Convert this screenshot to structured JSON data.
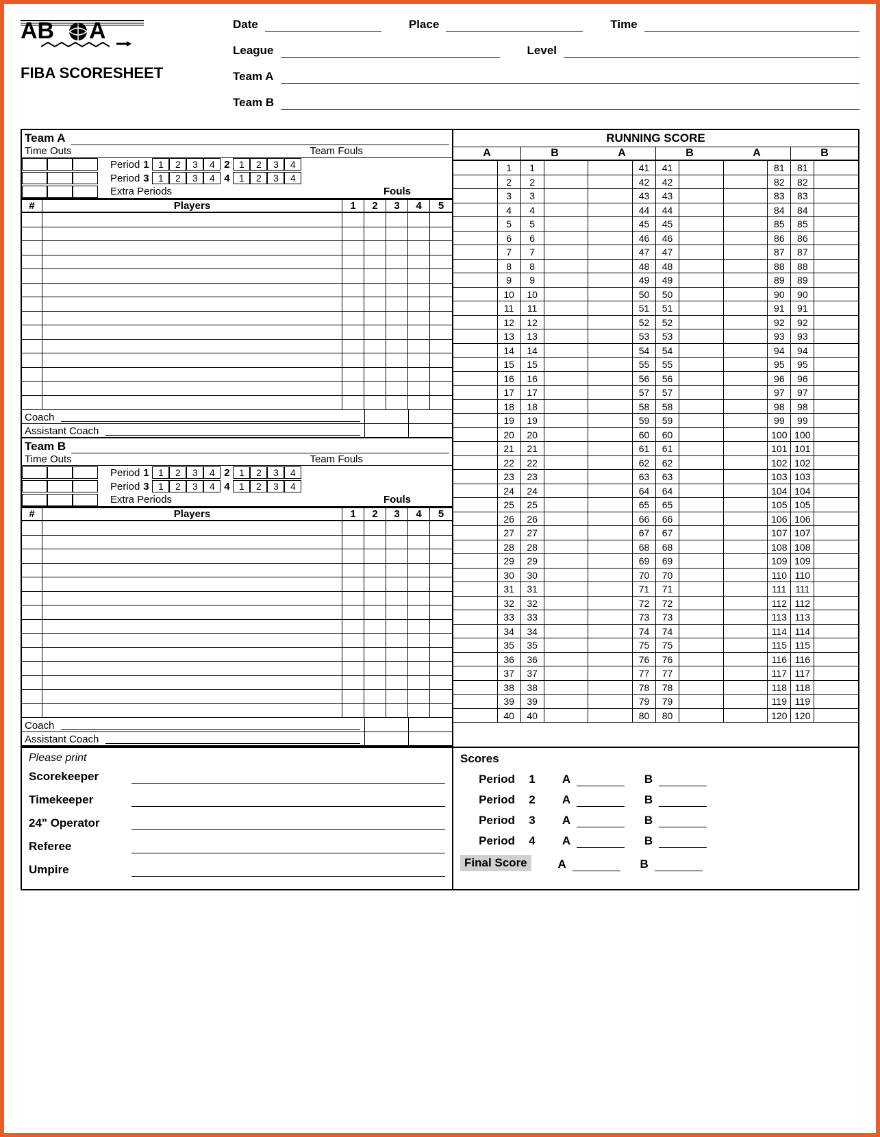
{
  "header": {
    "title": "FIBA SCORESHEET",
    "logo_text": "ABOA",
    "fields": {
      "date": "Date",
      "place": "Place",
      "time": "Time",
      "league": "League",
      "level": "Level",
      "teamA": "Team A",
      "teamB": "Team B"
    }
  },
  "team_section": {
    "teamA_label": "Team A",
    "teamB_label": "Team B",
    "timeouts": "Time Outs",
    "team_fouls": "Team Fouls",
    "period": "Period",
    "extra_periods": "Extra Periods",
    "fouls": "Fouls",
    "period_nums": [
      "1",
      "3"
    ],
    "period_right_nums": [
      "2",
      "4"
    ],
    "foul_cells": [
      "1",
      "2",
      "3",
      "4"
    ],
    "players_hdr_num": "#",
    "players_hdr_name": "Players",
    "players_hdr_fouls": [
      "1",
      "2",
      "3",
      "4",
      "5"
    ],
    "player_rows": 14,
    "coach": "Coach",
    "asst_coach": "Assistant Coach"
  },
  "running_score": {
    "title": "RUNNING SCORE",
    "col_labels": [
      "A",
      "B"
    ],
    "ranges": [
      [
        1,
        40
      ],
      [
        41,
        80
      ],
      [
        81,
        120
      ]
    ]
  },
  "bottom": {
    "please_print": "Please print",
    "roles": [
      "Scorekeeper",
      "Timekeeper",
      "24\" Operator",
      "Referee",
      "Umpire"
    ],
    "scores": "Scores",
    "period": "Period",
    "periods": [
      "1",
      "2",
      "3",
      "4"
    ],
    "final": "Final Score",
    "A": "A",
    "B": "B"
  },
  "colors": {
    "border": "#ed5a2a",
    "ink": "#000000"
  }
}
